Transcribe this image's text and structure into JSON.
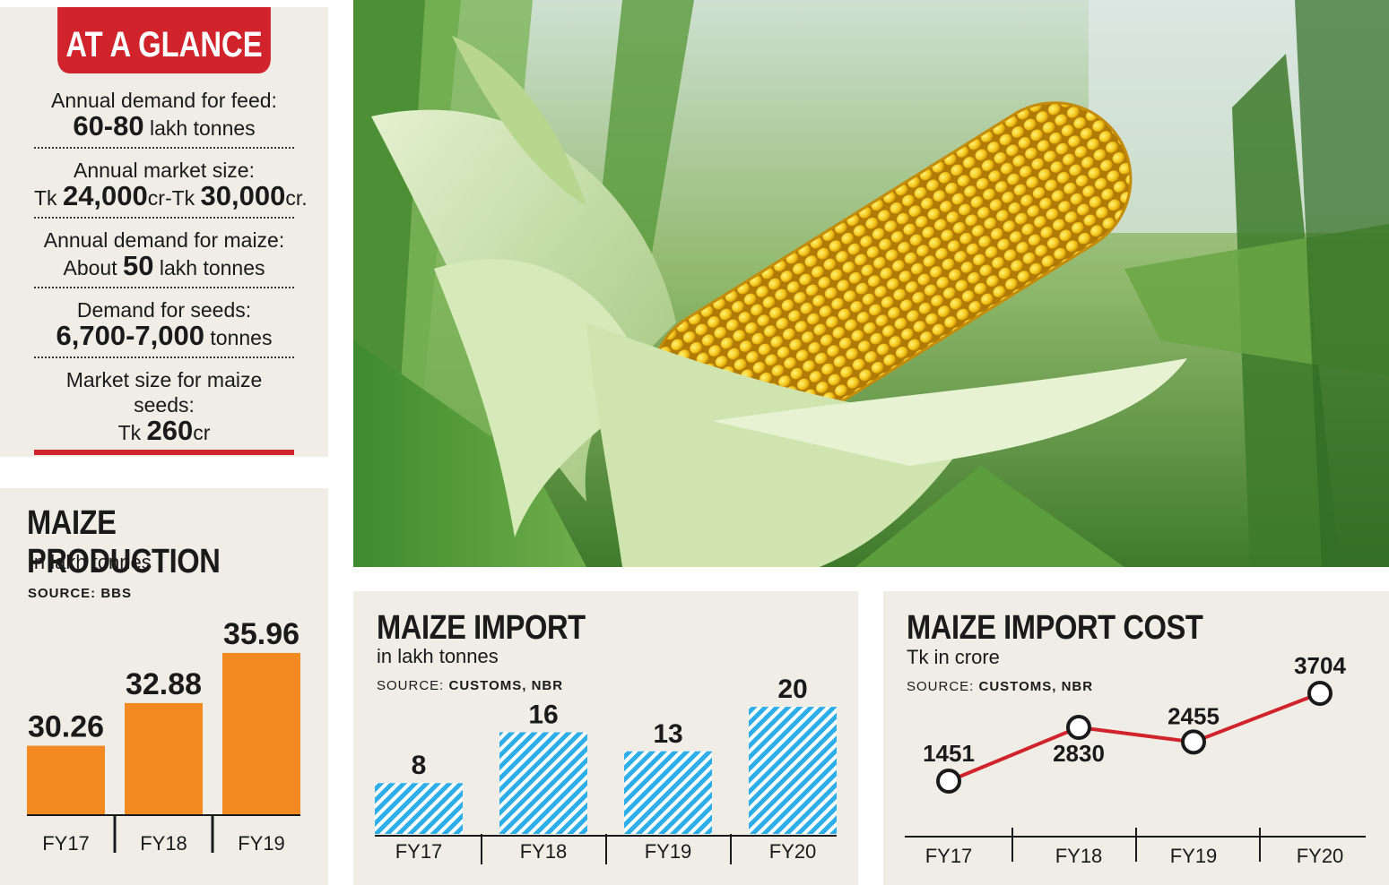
{
  "glance": {
    "title": "AT A GLANCE",
    "items": [
      {
        "label": "Annual demand for feed:",
        "prefix": "",
        "value": "60-80",
        "suffix": " lakh tonnes"
      },
      {
        "label": "Annual market size:",
        "prefix": "Tk ",
        "value": "24,000",
        "suffix": "cr-Tk ",
        "value2": "30,000",
        "suffix2": "cr."
      },
      {
        "label": "Annual demand for maize:",
        "prefix": "About ",
        "value": "50",
        "suffix": " lakh tonnes"
      },
      {
        "label": "Demand for seeds:",
        "prefix": "",
        "value": "6,700-7,000",
        "suffix": " tonnes"
      },
      {
        "label": "Market size for maize seeds:",
        "prefix": "Tk ",
        "value": "260",
        "suffix": "cr"
      }
    ]
  },
  "colors": {
    "accent_red": "#d0232c",
    "production_bar": "#f28a21",
    "import_bar": "#2eaee8",
    "cost_line": "#d0232c",
    "panel_bg": "#efede6"
  },
  "chart_data": [
    {
      "type": "bar",
      "title": "MAIZE PRODUCTION",
      "subtitle": "in lakh tonnes",
      "source_label": "SOURCE:",
      "source": "BBS",
      "categories": [
        "FY17",
        "FY18",
        "FY19"
      ],
      "values": [
        30.26,
        32.88,
        35.96
      ],
      "value_labels": [
        "30.26",
        "32.88",
        "35.96"
      ],
      "ylim": [
        26,
        37
      ],
      "grid": false
    },
    {
      "type": "bar",
      "title": "MAIZE IMPORT",
      "subtitle": "in lakh tonnes",
      "source_label": "SOURCE:",
      "source": "CUSTOMS, NBR",
      "categories": [
        "FY17",
        "FY18",
        "FY19",
        "FY20"
      ],
      "values": [
        8,
        16,
        13,
        20
      ],
      "value_labels": [
        "8",
        "16",
        "13",
        "20"
      ],
      "ylim": [
        0,
        21
      ],
      "grid": false
    },
    {
      "type": "line",
      "title": "MAIZE IMPORT COST",
      "subtitle": "Tk in crore",
      "source_label": "SOURCE:",
      "source": "CUSTOMS, NBR",
      "categories": [
        "FY17",
        "FY18",
        "FY19",
        "FY20"
      ],
      "values": [
        1451,
        2830,
        2455,
        3704
      ],
      "value_labels": [
        "1451",
        "2830",
        "2455",
        "3704"
      ],
      "ylim": [
        0,
        4500
      ],
      "grid": false
    }
  ]
}
